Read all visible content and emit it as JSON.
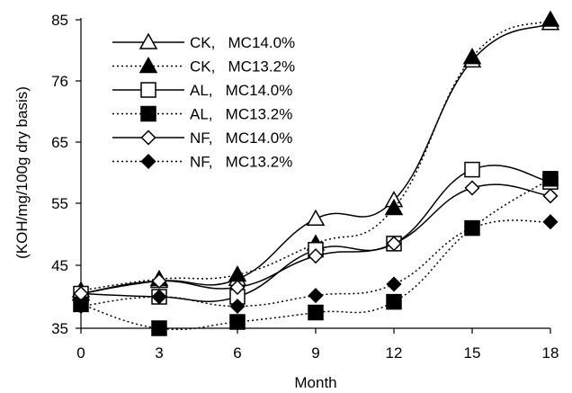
{
  "chart_data": {
    "type": "line",
    "xlabel": "Month",
    "ylabel": "(KOH/mg/100g dry basis)",
    "x_ticks": [
      "0",
      "3",
      "6",
      "9",
      "12",
      "15",
      "18"
    ],
    "y_ticks": [
      "35",
      "45",
      "55",
      "65",
      "76",
      "85"
    ],
    "xlim": [
      0,
      18
    ],
    "ylim": [
      35,
      85
    ],
    "grid": false,
    "legend_position": "top-left",
    "series": [
      {
        "name": "CK,   MC14.0%",
        "marker": "triangle-open",
        "line": "solid",
        "x": [
          0,
          3,
          6,
          9,
          12,
          15,
          18
        ],
        "y": [
          40.5,
          42.5,
          42.8,
          52.5,
          55.5,
          79,
          84.5
        ]
      },
      {
        "name": "CK,   MC13.2%",
        "marker": "triangle-filled",
        "line": "dotted",
        "x": [
          0,
          3,
          6,
          9,
          12,
          15,
          18
        ],
        "y": [
          41,
          42.8,
          43.5,
          48.5,
          54.2,
          79.5,
          85
        ]
      },
      {
        "name": "AL,   MC14.0%",
        "marker": "square-open",
        "line": "solid",
        "x": [
          0,
          3,
          6,
          9,
          12,
          15,
          18
        ],
        "y": [
          40.5,
          40,
          40,
          47.5,
          48.5,
          60.5,
          58.5
        ]
      },
      {
        "name": "AL,   MC13.2%",
        "marker": "square-filled",
        "line": "dotted",
        "x": [
          0,
          3,
          6,
          9,
          12,
          15,
          18
        ],
        "y": [
          38.8,
          35,
          36,
          37.5,
          39.2,
          51,
          59
        ]
      },
      {
        "name": "NF,   MC14.0%",
        "marker": "diamond-open",
        "line": "solid",
        "x": [
          0,
          3,
          6,
          9,
          12,
          15,
          18
        ],
        "y": [
          40.5,
          42.5,
          41.5,
          46.5,
          48.5,
          57.5,
          56.2
        ]
      },
      {
        "name": "NF,   MC13.2%",
        "marker": "diamond-filled",
        "line": "dotted",
        "x": [
          0,
          3,
          6,
          9,
          12,
          15,
          18
        ],
        "y": [
          38.5,
          40,
          38.5,
          40.2,
          42,
          51,
          52
        ]
      }
    ]
  }
}
